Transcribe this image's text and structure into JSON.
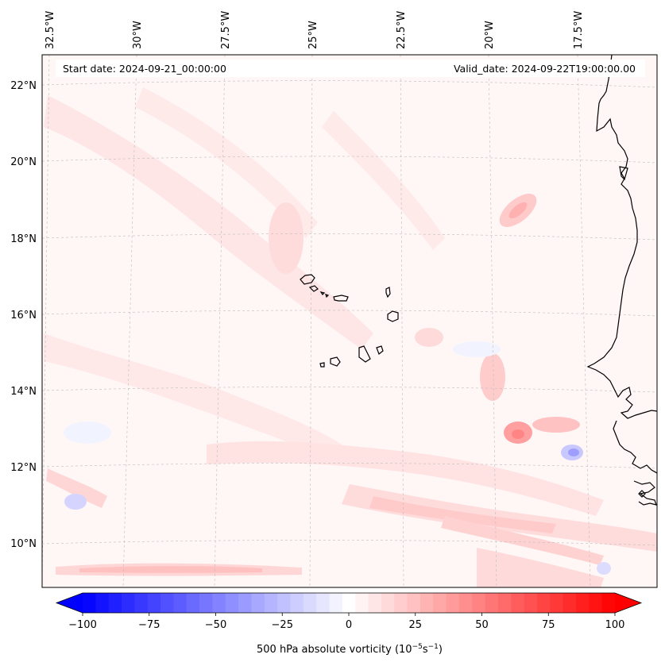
{
  "map": {
    "start_date_label": "Start date: 2024-09-21_00:00:00",
    "valid_date_label": "Valid_date: 2024-09-22T19:00:00.00",
    "longitude_labels": [
      "32.5°W",
      "30°W",
      "27.5°W",
      "25°W",
      "22.5°W",
      "20°W",
      "17.5°W"
    ],
    "latitude_labels": [
      "22°N",
      "20°N",
      "18°N",
      "16°N",
      "14°N",
      "12°N",
      "10°N"
    ],
    "field": "500 hPa absolute vorticity",
    "region": "Cabo Verde and West African coast"
  },
  "colorbar": {
    "label_prefix": "500 hPa absolute vorticity (10",
    "label_exp1": "−5",
    "label_mid": "s",
    "label_exp2": "−1",
    "label_suffix": ")",
    "tick_labels": [
      "−100",
      "−75",
      "−50",
      "−25",
      "0",
      "25",
      "50",
      "75",
      "100"
    ],
    "min": -100,
    "max": 100,
    "levels": 41,
    "color_negative": "#0000ff",
    "color_zero": "#ffffff",
    "color_positive": "#ff0000"
  }
}
